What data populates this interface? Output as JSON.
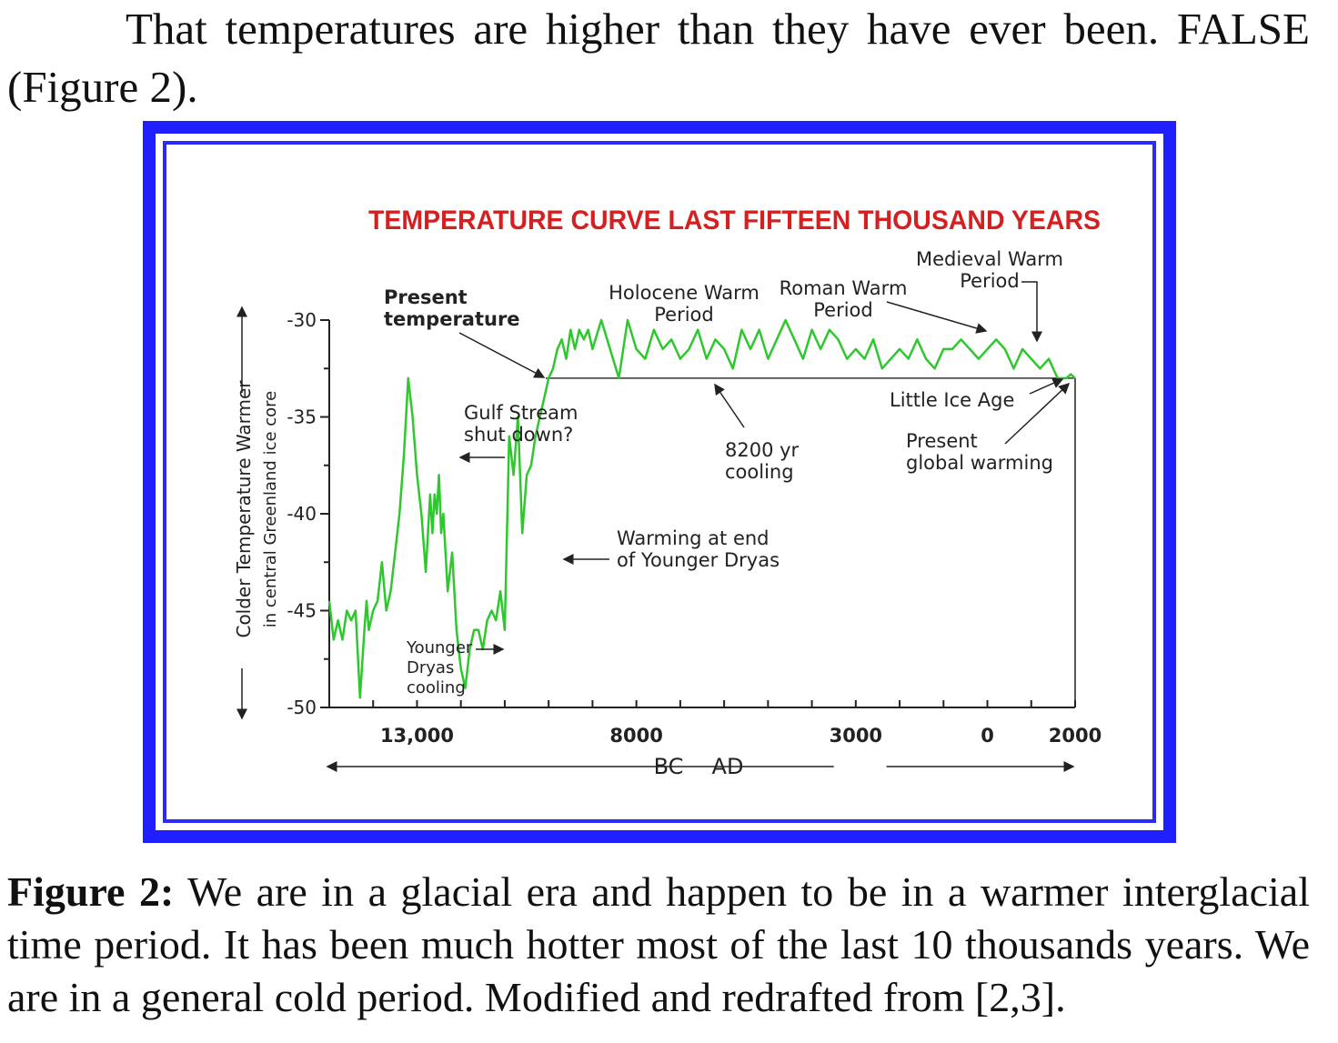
{
  "paragraph": {
    "text": "That temperatures are higher than they have ever been. FALSE (Figure 2)."
  },
  "figure": {
    "border_color": "#1f1fff",
    "caption_label": "Figure 2:",
    "caption_text": " We are in a glacial era and happen to be in a warmer interglacial time period. It has been much hotter most of the last 10 thousands years. We are in a general cold period. Modified and redrafted from [2,3]."
  },
  "chart_data": {
    "type": "line",
    "title": "TEMPERATURE CURVE LAST FIFTEEN THOUSAND YEARS",
    "title_color": "#d42020",
    "line_color": "#2ec82e",
    "ylabel_line1": "Colder   Temperature   Warmer",
    "ylabel_line2": "in central Greenland ice core",
    "ylim": [
      -50,
      -30
    ],
    "yticks": [
      -30,
      -35,
      -40,
      -45,
      -50
    ],
    "xlim": [
      -15000,
      2000
    ],
    "xtick_labels": [
      {
        "value": -13000,
        "label": "13,000"
      },
      {
        "value": -8000,
        "label": "8000"
      },
      {
        "value": -3000,
        "label": "3000"
      },
      {
        "value": 0,
        "label": "0"
      },
      {
        "value": 2000,
        "label": "2000"
      }
    ],
    "era_labels": [
      "BC",
      "AD"
    ],
    "present_temperature": -33,
    "series": [
      {
        "x": [
          -15000,
          -14900,
          -14800,
          -14700,
          -14600,
          -14500,
          -14400,
          -14300,
          -14200,
          -14150,
          -14100,
          -14000,
          -13900,
          -13800,
          -13700,
          -13600,
          -13500,
          -13400,
          -13300,
          -13200,
          -13100,
          -13000,
          -12900,
          -12800,
          -12700,
          -12650,
          -12600,
          -12550,
          -12500,
          -12450,
          -12400,
          -12300,
          -12200,
          -12100,
          -12000,
          -11900,
          -11800,
          -11700,
          -11600,
          -11500,
          -11400,
          -11300,
          -11200,
          -11100,
          -11000,
          -10900,
          -10800,
          -10700,
          -10600,
          -10500,
          -10400,
          -10300,
          -10200,
          -10100,
          -10000,
          -9900,
          -9800,
          -9700,
          -9600,
          -9500,
          -9400,
          -9300,
          -9200,
          -9100,
          -9000,
          -8800,
          -8600,
          -8400,
          -8200,
          -8000,
          -7800,
          -7600,
          -7400,
          -7200,
          -7000,
          -6800,
          -6600,
          -6400,
          -6200,
          -6000,
          -5800,
          -5600,
          -5400,
          -5200,
          -5000,
          -4800,
          -4600,
          -4400,
          -4200,
          -4000,
          -3800,
          -3600,
          -3400,
          -3200,
          -3000,
          -2800,
          -2600,
          -2400,
          -2200,
          -2000,
          -1800,
          -1600,
          -1400,
          -1200,
          -1000,
          -800,
          -600,
          -400,
          -200,
          0,
          200,
          400,
          600,
          800,
          1000,
          1200,
          1400,
          1600,
          1800,
          1900,
          2000
        ],
        "y": [
          -44.5,
          -46.5,
          -45.5,
          -46.5,
          -45,
          -45.5,
          -45,
          -49.5,
          -46,
          -44.5,
          -46,
          -45,
          -44.5,
          -42.5,
          -45,
          -44,
          -42,
          -40,
          -37,
          -33,
          -35,
          -38,
          -40,
          -43,
          -39,
          -41,
          -39,
          -40,
          -38,
          -41,
          -40,
          -44,
          -42,
          -46,
          -48,
          -49,
          -47,
          -46,
          -46,
          -47,
          -45.5,
          -45,
          -45.5,
          -44,
          -46,
          -36,
          -38,
          -35,
          -41,
          -38,
          -37.5,
          -36,
          -35,
          -34,
          -33,
          -32.5,
          -31.5,
          -31,
          -32,
          -30.5,
          -31.5,
          -30.5,
          -31,
          -30.5,
          -31.5,
          -30,
          -31.5,
          -33,
          -30,
          -31.5,
          -32,
          -30.5,
          -31.5,
          -31,
          -32,
          -31.5,
          -30.5,
          -32,
          -31,
          -31.5,
          -32.5,
          -30.5,
          -31.5,
          -30.5,
          -32,
          -31,
          -30,
          -31,
          -32,
          -30.5,
          -31.5,
          -30.5,
          -31,
          -32,
          -31.5,
          -32,
          -31,
          -32.5,
          -32,
          -31.5,
          -32,
          -31,
          -32,
          -32.5,
          -31.5,
          -31.5,
          -31,
          -31.5,
          -32,
          -31.5,
          -31,
          -31.5,
          -32.5,
          -31.5,
          -32,
          -32.5,
          -32,
          -33,
          -33,
          -32.8,
          -33
        ]
      }
    ],
    "annotations": {
      "present_temperature": "Present\ntemperature",
      "gulf_stream": "Gulf Stream\nshut down?",
      "holocene": "Holocene Warm\nPeriod",
      "roman": "Roman Warm\nPeriod",
      "medieval": "Medieval Warm\nPeriod",
      "little_ice_age": "Little Ice Age",
      "present_warming": "Present\nglobal warming",
      "cooling_8200": "8200 yr\ncooling",
      "younger_dryas_warming": "Warming at end\nof Younger Dryas",
      "younger_dryas_cooling": "Younger\nDryas\ncooling"
    }
  }
}
